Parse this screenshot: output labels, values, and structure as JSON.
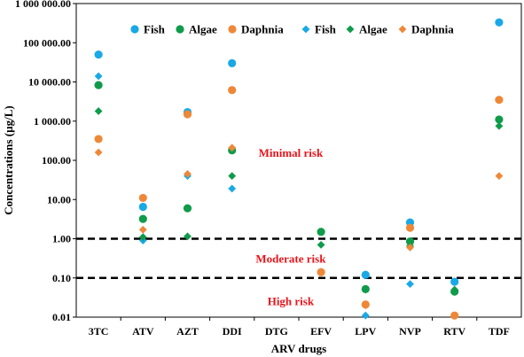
{
  "chart_data": {
    "type": "scatter",
    "xlabel": "ARV drugs",
    "ylabel": "Concentrations (µg/L)",
    "yscale": "log",
    "ylim": [
      0.01,
      1000000
    ],
    "yticks": [
      0.01,
      0.1,
      1,
      10,
      100,
      1000,
      10000,
      100000,
      1000000
    ],
    "ytick_labels": [
      "0.01",
      "0.10",
      "1.00",
      "10.00",
      "100.00",
      "1 000.00",
      "10 000.00",
      "100 000.00",
      "1 000 000.00"
    ],
    "categories": [
      "3TC",
      "ATV",
      "AZT",
      "DDI",
      "DTG",
      "EFV",
      "LPV",
      "NVP",
      "RTV",
      "TDF"
    ],
    "grid": false,
    "legend_position": "top",
    "thresholds": [
      {
        "value": 1,
        "style": "dashed"
      },
      {
        "value": 0.1,
        "style": "dashed"
      }
    ],
    "annotations": [
      {
        "text": "Minimal risk",
        "category": "DTG",
        "y": 150
      },
      {
        "text": "Moderate risk",
        "category": "DTG",
        "y": 0.3
      },
      {
        "text": "High risk",
        "category": "DTG",
        "y": 0.025
      }
    ],
    "series": [
      {
        "name": "Fish",
        "marker": "circle",
        "color": "#18a9e6",
        "values": [
          50000,
          6.5,
          1700,
          30000,
          null,
          null,
          0.12,
          2.6,
          0.08,
          330000
        ]
      },
      {
        "name": "Algae",
        "marker": "circle",
        "color": "#109b4a",
        "values": [
          8300,
          3.2,
          6,
          180,
          null,
          1.5,
          0.052,
          0.85,
          0.045,
          1100
        ]
      },
      {
        "name": "Daphnia",
        "marker": "circle",
        "color": "#ee8838",
        "values": [
          350,
          11,
          1500,
          6200,
          null,
          0.14,
          0.021,
          1.9,
          0.011,
          3500
        ]
      },
      {
        "name": "Fish",
        "marker": "diamond",
        "color": "#18a9e6",
        "values": [
          14000,
          0.9,
          40,
          19,
          null,
          null,
          0.011,
          0.07,
          null,
          null
        ]
      },
      {
        "name": "Algae",
        "marker": "diamond",
        "color": "#109b4a",
        "values": [
          1800,
          1.1,
          1.15,
          40,
          null,
          0.7,
          0.05,
          0.65,
          0.05,
          750
        ]
      },
      {
        "name": "Daphnia",
        "marker": "diamond",
        "color": "#ee8838",
        "values": [
          160,
          1.7,
          45,
          210,
          null,
          0.14,
          0.02,
          0.6,
          null,
          40
        ]
      }
    ]
  }
}
